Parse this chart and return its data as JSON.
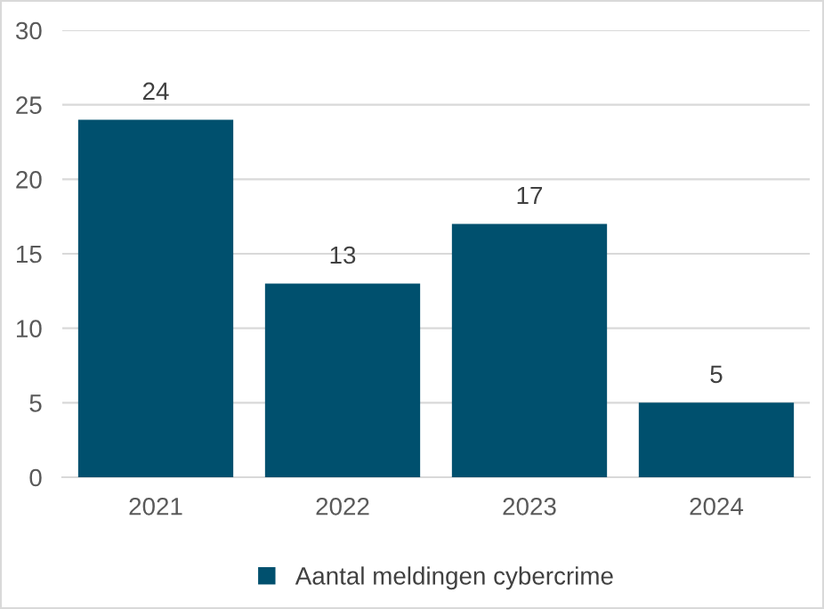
{
  "chart_data": {
    "type": "bar",
    "categories": [
      "2021",
      "2022",
      "2023",
      "2024"
    ],
    "series": [
      {
        "name": "Aantal meldingen cybercrime",
        "color": "#00506e",
        "values": [
          24,
          13,
          17,
          5
        ]
      }
    ],
    "ylim": [
      0,
      30
    ],
    "yticks": [
      0,
      5,
      10,
      15,
      20,
      25,
      30
    ],
    "grid": "y",
    "legend": "bottom",
    "data_labels": true
  }
}
